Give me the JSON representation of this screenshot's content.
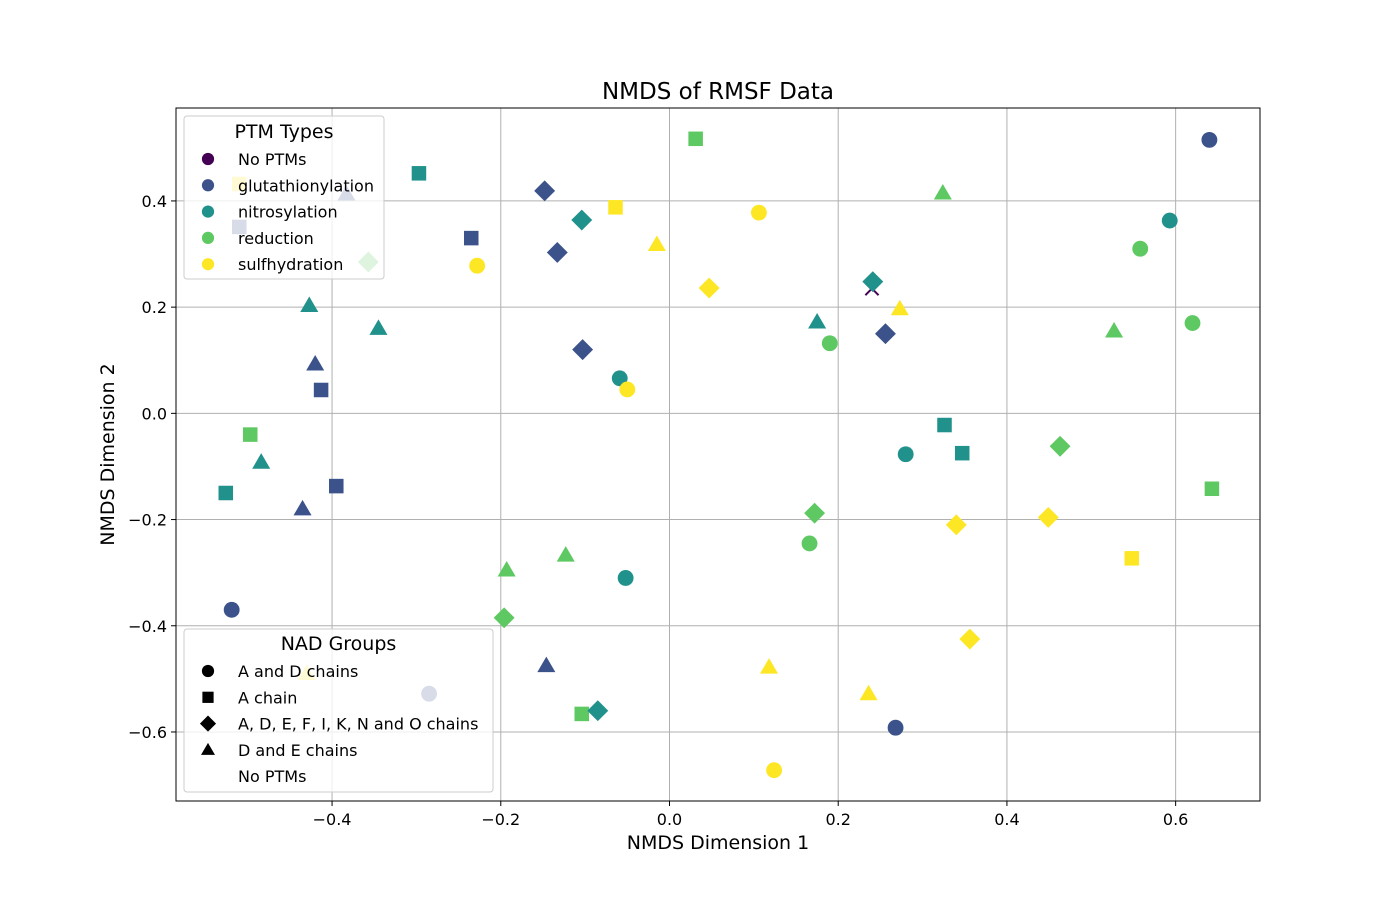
{
  "chart_data": {
    "type": "scatter",
    "title": "NMDS of RMSF Data",
    "xlabel": "NMDS Dimension 1",
    "ylabel": "NMDS Dimension 2",
    "xlim": [
      -0.585,
      0.7
    ],
    "ylim": [
      -0.73,
      0.575
    ],
    "x_ticks": [
      -0.4,
      -0.2,
      0.0,
      0.2,
      0.4,
      0.6
    ],
    "x_tick_labels": [
      "−0.4",
      "−0.2",
      "0.0",
      "0.2",
      "0.4",
      "0.6"
    ],
    "y_ticks": [
      -0.6,
      -0.4,
      -0.2,
      0.0,
      0.2,
      0.4
    ],
    "y_tick_labels": [
      "−0.6",
      "−0.4",
      "−0.2",
      "0.0",
      "0.2",
      "0.4"
    ],
    "grid": true,
    "ptm_legend": {
      "title": "PTM Types",
      "placement": "top-left",
      "items": [
        {
          "label": "No PTMs",
          "color": "#440154"
        },
        {
          "label": "glutathionylation",
          "color": "#3b528b"
        },
        {
          "label": "nitrosylation",
          "color": "#21918c"
        },
        {
          "label": "reduction",
          "color": "#5ec962"
        },
        {
          "label": "sulfhydration",
          "color": "#fde725"
        }
      ]
    },
    "nad_legend": {
      "title": "NAD Groups",
      "placement": "bottom-left",
      "items": [
        {
          "label": "A and D chains",
          "marker": "circle"
        },
        {
          "label": "A chain",
          "marker": "square"
        },
        {
          "label": "A, D, E, F, I, K, N and O chains",
          "marker": "diamond"
        },
        {
          "label": "D and E chains",
          "marker": "triangle"
        },
        {
          "label": "No PTMs",
          "marker": "x"
        }
      ]
    },
    "points": [
      {
        "x": 0.64,
        "y": 0.515,
        "ptm": "glutathionylation",
        "nad": "A and D chains"
      },
      {
        "x": 0.593,
        "y": 0.363,
        "ptm": "nitrosylation",
        "nad": "A and D chains"
      },
      {
        "x": 0.558,
        "y": 0.31,
        "ptm": "reduction",
        "nad": "A and D chains"
      },
      {
        "x": 0.62,
        "y": 0.17,
        "ptm": "reduction",
        "nad": "A and D chains"
      },
      {
        "x": 0.527,
        "y": 0.155,
        "ptm": "reduction",
        "nad": "D and E chains"
      },
      {
        "x": 0.643,
        "y": -0.142,
        "ptm": "reduction",
        "nad": "A chain"
      },
      {
        "x": 0.548,
        "y": -0.273,
        "ptm": "sulfhydration",
        "nad": "A chain"
      },
      {
        "x": 0.463,
        "y": -0.062,
        "ptm": "reduction",
        "nad": "A, D, E, F, I, K, N and O chains"
      },
      {
        "x": 0.449,
        "y": -0.196,
        "ptm": "sulfhydration",
        "nad": "A, D, E, F, I, K, N and O chains"
      },
      {
        "x": 0.326,
        "y": -0.022,
        "ptm": "nitrosylation",
        "nad": "A chain"
      },
      {
        "x": 0.347,
        "y": -0.075,
        "ptm": "nitrosylation",
        "nad": "A chain"
      },
      {
        "x": 0.28,
        "y": -0.077,
        "ptm": "nitrosylation",
        "nad": "A and D chains"
      },
      {
        "x": 0.34,
        "y": -0.21,
        "ptm": "sulfhydration",
        "nad": "A, D, E, F, I, K, N and O chains"
      },
      {
        "x": 0.356,
        "y": -0.425,
        "ptm": "sulfhydration",
        "nad": "A, D, E, F, I, K, N and O chains"
      },
      {
        "x": 0.324,
        "y": 0.415,
        "ptm": "reduction",
        "nad": "D and E chains"
      },
      {
        "x": 0.273,
        "y": 0.197,
        "ptm": "sulfhydration",
        "nad": "D and E chains"
      },
      {
        "x": 0.24,
        "y": 0.235,
        "ptm": "No PTMs",
        "nad": "No PTMs"
      },
      {
        "x": 0.241,
        "y": 0.248,
        "ptm": "nitrosylation",
        "nad": "A, D, E, F, I, K, N and O chains"
      },
      {
        "x": 0.256,
        "y": 0.15,
        "ptm": "glutathionylation",
        "nad": "A, D, E, F, I, K, N and O chains"
      },
      {
        "x": 0.175,
        "y": 0.172,
        "ptm": "nitrosylation",
        "nad": "D and E chains"
      },
      {
        "x": 0.19,
        "y": 0.132,
        "ptm": "reduction",
        "nad": "A and D chains"
      },
      {
        "x": 0.172,
        "y": -0.188,
        "ptm": "reduction",
        "nad": "A, D, E, F, I, K, N and O chains"
      },
      {
        "x": 0.166,
        "y": -0.245,
        "ptm": "reduction",
        "nad": "A and D chains"
      },
      {
        "x": 0.236,
        "y": -0.528,
        "ptm": "sulfhydration",
        "nad": "D and E chains"
      },
      {
        "x": 0.268,
        "y": -0.592,
        "ptm": "glutathionylation",
        "nad": "A and D chains"
      },
      {
        "x": 0.118,
        "y": -0.478,
        "ptm": "sulfhydration",
        "nad": "D and E chains"
      },
      {
        "x": 0.124,
        "y": -0.672,
        "ptm": "sulfhydration",
        "nad": "A and D chains"
      },
      {
        "x": 0.031,
        "y": 0.517,
        "ptm": "reduction",
        "nad": "A chain"
      },
      {
        "x": 0.106,
        "y": 0.378,
        "ptm": "sulfhydration",
        "nad": "A and D chains"
      },
      {
        "x": 0.047,
        "y": 0.236,
        "ptm": "sulfhydration",
        "nad": "A, D, E, F, I, K, N and O chains"
      },
      {
        "x": -0.015,
        "y": 0.318,
        "ptm": "sulfhydration",
        "nad": "D and E chains"
      },
      {
        "x": -0.064,
        "y": 0.388,
        "ptm": "sulfhydration",
        "nad": "A chain"
      },
      {
        "x": -0.104,
        "y": 0.364,
        "ptm": "nitrosylation",
        "nad": "A, D, E, F, I, K, N and O chains"
      },
      {
        "x": -0.148,
        "y": 0.419,
        "ptm": "glutathionylation",
        "nad": "A, D, E, F, I, K, N and O chains"
      },
      {
        "x": -0.133,
        "y": 0.303,
        "ptm": "glutathionylation",
        "nad": "A, D, E, F, I, K, N and O chains"
      },
      {
        "x": -0.103,
        "y": 0.12,
        "ptm": "glutathionylation",
        "nad": "A, D, E, F, I, K, N and O chains"
      },
      {
        "x": -0.059,
        "y": 0.066,
        "ptm": "nitrosylation",
        "nad": "A and D chains"
      },
      {
        "x": -0.05,
        "y": 0.045,
        "ptm": "sulfhydration",
        "nad": "A and D chains"
      },
      {
        "x": -0.052,
        "y": -0.31,
        "ptm": "nitrosylation",
        "nad": "A and D chains"
      },
      {
        "x": -0.123,
        "y": -0.267,
        "ptm": "reduction",
        "nad": "D and E chains"
      },
      {
        "x": -0.193,
        "y": -0.295,
        "ptm": "reduction",
        "nad": "D and E chains"
      },
      {
        "x": -0.196,
        "y": -0.385,
        "ptm": "reduction",
        "nad": "A, D, E, F, I, K, N and O chains"
      },
      {
        "x": -0.146,
        "y": -0.475,
        "ptm": "glutathionylation",
        "nad": "D and E chains"
      },
      {
        "x": -0.104,
        "y": -0.566,
        "ptm": "reduction",
        "nad": "A chain"
      },
      {
        "x": -0.085,
        "y": -0.56,
        "ptm": "nitrosylation",
        "nad": "A, D, E, F, I, K, N and O chains"
      },
      {
        "x": -0.235,
        "y": 0.33,
        "ptm": "glutathionylation",
        "nad": "A chain"
      },
      {
        "x": -0.228,
        "y": 0.278,
        "ptm": "sulfhydration",
        "nad": "A and D chains"
      },
      {
        "x": -0.297,
        "y": 0.452,
        "ptm": "nitrosylation",
        "nad": "A chain"
      },
      {
        "x": -0.383,
        "y": 0.413,
        "ptm": "glutathionylation",
        "nad": "D and E chains"
      },
      {
        "x": -0.357,
        "y": 0.285,
        "ptm": "reduction",
        "nad": "A, D, E, F, I, K, N and O chains"
      },
      {
        "x": -0.345,
        "y": 0.16,
        "ptm": "nitrosylation",
        "nad": "D and E chains"
      },
      {
        "x": -0.427,
        "y": 0.203,
        "ptm": "nitrosylation",
        "nad": "D and E chains"
      },
      {
        "x": -0.42,
        "y": 0.093,
        "ptm": "glutathionylation",
        "nad": "D and E chains"
      },
      {
        "x": -0.413,
        "y": 0.044,
        "ptm": "glutathionylation",
        "nad": "A chain"
      },
      {
        "x": -0.395,
        "y": -0.137,
        "ptm": "glutathionylation",
        "nad": "A chain"
      },
      {
        "x": -0.497,
        "y": -0.04,
        "ptm": "reduction",
        "nad": "A chain"
      },
      {
        "x": -0.484,
        "y": -0.092,
        "ptm": "nitrosylation",
        "nad": "D and E chains"
      },
      {
        "x": -0.526,
        "y": -0.15,
        "ptm": "nitrosylation",
        "nad": "A chain"
      },
      {
        "x": -0.435,
        "y": -0.18,
        "ptm": "glutathionylation",
        "nad": "D and E chains"
      },
      {
        "x": -0.519,
        "y": -0.37,
        "ptm": "glutathionylation",
        "nad": "A and D chains"
      },
      {
        "x": -0.51,
        "y": 0.432,
        "ptm": "sulfhydration",
        "nad": "A chain"
      },
      {
        "x": -0.51,
        "y": 0.351,
        "ptm": "glutathionylation",
        "nad": "A chain"
      },
      {
        "x": -0.285,
        "y": -0.528,
        "ptm": "glutathionylation",
        "nad": "A and D chains"
      },
      {
        "x": -0.43,
        "y": -0.49,
        "ptm": "sulfhydration",
        "nad": "D and E chains"
      }
    ]
  }
}
